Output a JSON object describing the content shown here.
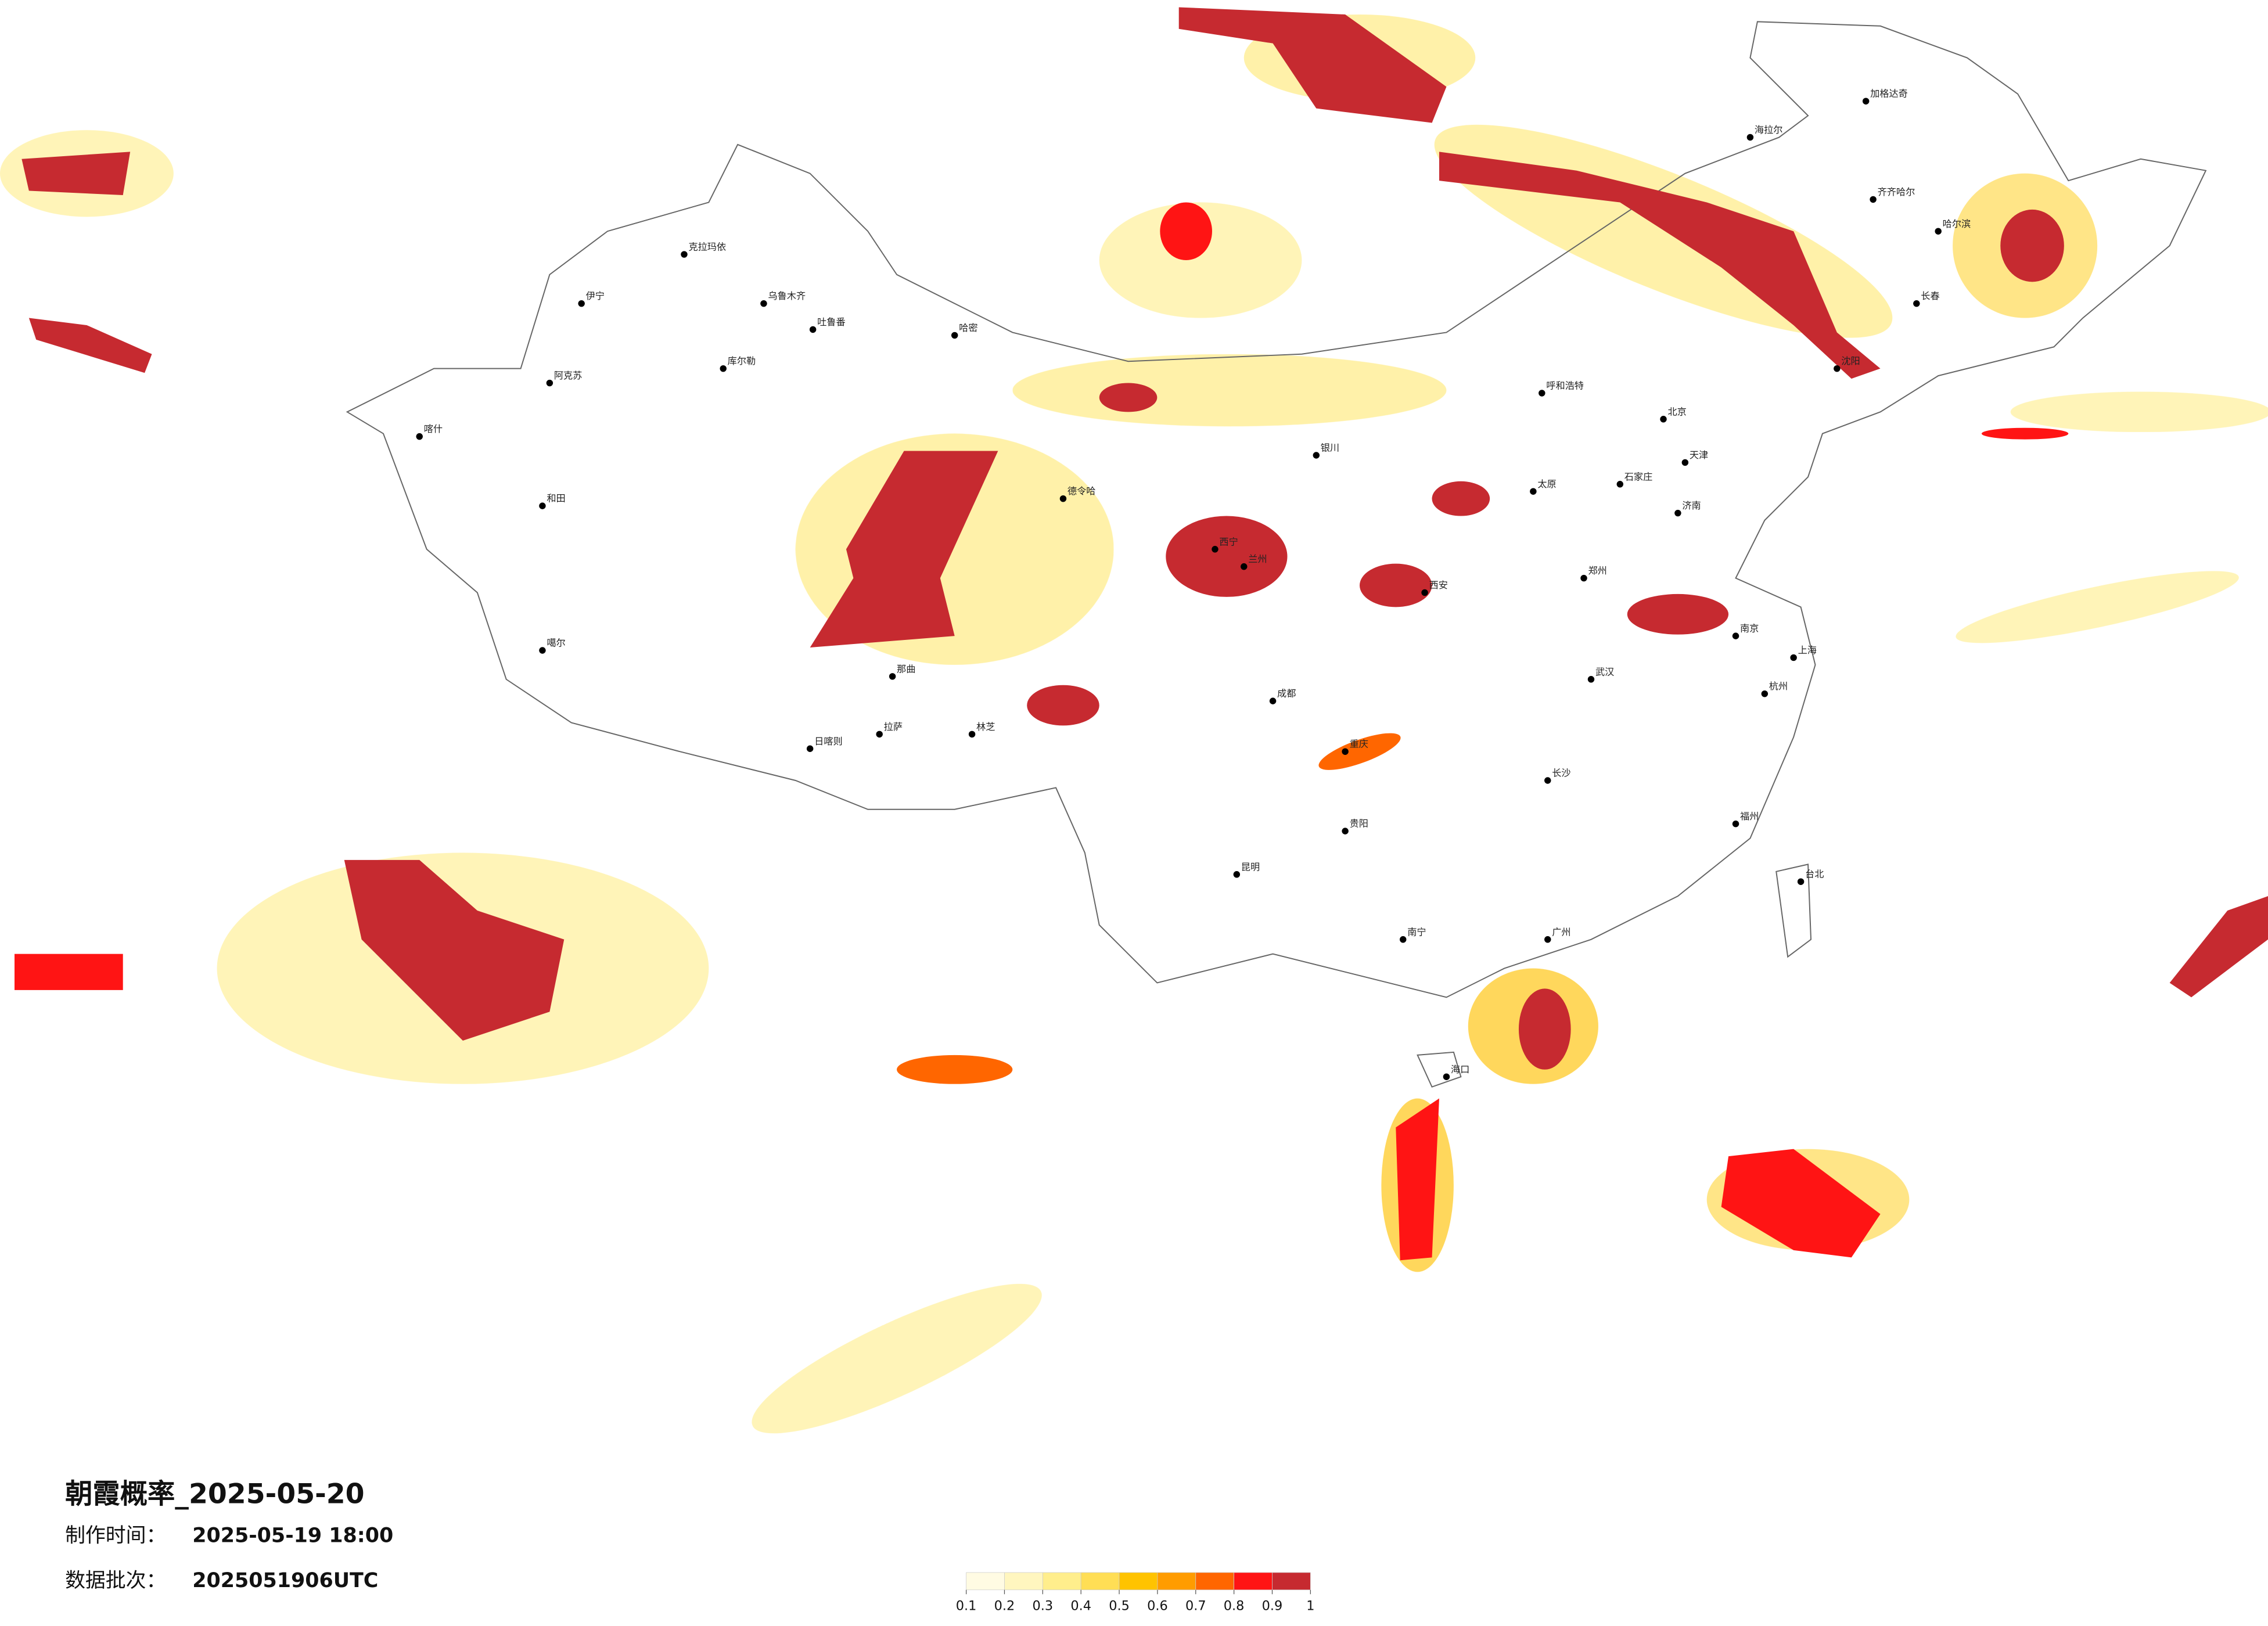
{
  "title": "朝霞概率_2025-05-20",
  "production_time": {
    "label": "制作时间：",
    "value": "2025-05-19 18:00"
  },
  "data_batch": {
    "label": "数据批次：",
    "value": "2025051906UTC"
  },
  "colorbar": {
    "ticks": [
      0.1,
      0.2,
      0.3,
      0.4,
      0.5,
      0.6,
      0.7,
      0.8,
      0.9,
      1
    ],
    "colors": [
      "#fffbe3",
      "#fff6bf",
      "#ffee8c",
      "#ffde55",
      "#ffc300",
      "#ff9c00",
      "#ff6600",
      "#ff1414",
      "#c62a30"
    ]
  },
  "cities": [
    "伊宁",
    "克拉玛依",
    "乌鲁木齐",
    "吐鲁番",
    "哈密",
    "库尔勒",
    "阿克苏",
    "喀什",
    "和田",
    "噶尔",
    "日喀则",
    "拉萨",
    "林芝",
    "那曲",
    "德令哈",
    "西宁",
    "兰州",
    "银川",
    "呼和浩特",
    "北京",
    "天津",
    "石家庄",
    "太原",
    "西安",
    "郑州",
    "济南",
    "南京",
    "上海",
    "杭州",
    "武汉",
    "长沙",
    "成都",
    "重庆",
    "贵阳",
    "昆明",
    "南宁",
    "广州",
    "福州",
    "台北",
    "海口",
    "沈阳",
    "长春",
    "哈尔滨",
    "齐齐哈尔",
    "海拉尔",
    "加格达奇"
  ]
}
